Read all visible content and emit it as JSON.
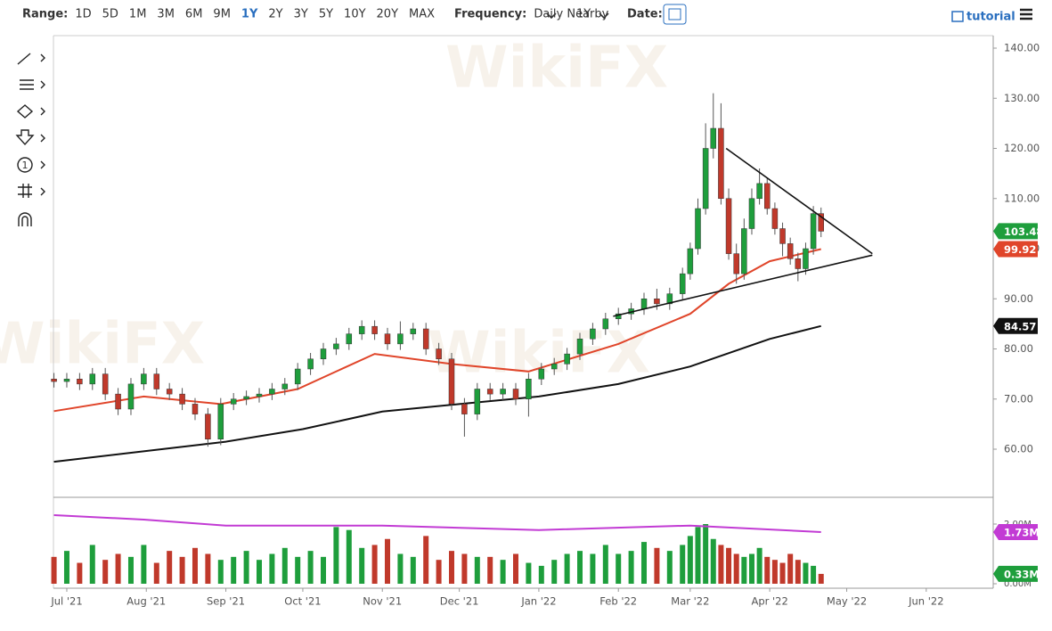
{
  "toolbar": {
    "range_label": "Range:",
    "ranges": [
      "1D",
      "5D",
      "1M",
      "3M",
      "6M",
      "9M",
      "1Y",
      "2Y",
      "3Y",
      "5Y",
      "10Y",
      "20Y",
      "MAX"
    ],
    "active_range": "1Y",
    "frequency_label": "Frequency:",
    "frequency": "Daily Nearby",
    "period": "1Y",
    "date_label": "Date:",
    "tutorial": "tutorial"
  },
  "drawing_tools": {
    "numbered_label": "1"
  },
  "watermark": "WikiFX",
  "chart_data": {
    "type": "candlestick",
    "up_color": "#1e9e3c",
    "down_color": "#c0392b",
    "x": [
      -5,
      0,
      5,
      10,
      15,
      20,
      25,
      30,
      35,
      40,
      45,
      50,
      55,
      60,
      65,
      70,
      75,
      80,
      85,
      90,
      95,
      100,
      105,
      110,
      115,
      120,
      125,
      130,
      135,
      140,
      145,
      150,
      155,
      160,
      165,
      170,
      175,
      180,
      185,
      190,
      195,
      200,
      205,
      210,
      215,
      220,
      225,
      230,
      235,
      240,
      243,
      246,
      249,
      252,
      255,
      258,
      261,
      264,
      267,
      270,
      273,
      276,
      279,
      282,
      285,
      288,
      291,
      294
    ],
    "open": [
      74,
      73.5,
      74,
      73,
      75,
      71,
      68,
      73,
      75,
      72,
      71,
      69,
      67,
      62,
      69,
      70,
      70.5,
      71,
      72,
      73,
      76,
      78,
      80,
      81,
      83,
      84.5,
      83,
      81,
      83,
      84,
      80,
      78,
      69,
      67,
      72,
      71,
      72,
      70,
      74,
      76,
      77,
      79,
      82,
      84,
      86,
      87,
      88,
      90,
      89,
      91,
      95,
      100,
      108,
      120,
      124,
      110,
      99,
      95,
      104,
      110,
      113,
      108,
      104,
      101,
      98,
      96,
      100,
      107
    ],
    "high": [
      75.2,
      75.2,
      75.2,
      76.2,
      76.2,
      72.2,
      74.2,
      76.2,
      76.2,
      73.2,
      72.2,
      70.2,
      68.2,
      70.2,
      71.2,
      71.7,
      72.2,
      73.2,
      74.2,
      77.2,
      79.2,
      81.2,
      82.2,
      84.2,
      85.7,
      85.7,
      84.2,
      85.5,
      85.2,
      85.2,
      81.2,
      79.2,
      70.2,
      73.2,
      73.2,
      73.2,
      73.2,
      75.2,
      77.2,
      78.2,
      80.2,
      83.2,
      85.2,
      87.2,
      88.2,
      89.2,
      91.2,
      92,
      92.2,
      96.2,
      101.2,
      110,
      125,
      131,
      129,
      112,
      101,
      106,
      112,
      116,
      114.2,
      109.2,
      105.2,
      102.2,
      99.2,
      101.2,
      108.5,
      108.2
    ],
    "low": [
      72.3,
      72.3,
      71.8,
      71.8,
      69.8,
      66.8,
      66.8,
      71.8,
      70.8,
      69.8,
      67.8,
      65.8,
      60.5,
      60.8,
      67.8,
      68.8,
      69.3,
      69.8,
      70.8,
      71.8,
      74.8,
      76.8,
      78.8,
      79.8,
      81.8,
      81.8,
      79.8,
      79.8,
      81.8,
      78.8,
      76.8,
      67.8,
      62.5,
      65.8,
      69.8,
      69.8,
      68.8,
      66.5,
      72.8,
      74.8,
      75.8,
      77.8,
      80.8,
      82.8,
      84.8,
      85.8,
      86.8,
      87.8,
      87.8,
      89.8,
      93.8,
      98.8,
      106.8,
      118,
      108.8,
      97.8,
      93,
      93.8,
      102.8,
      108.8,
      106.8,
      102.8,
      98.5,
      96.8,
      93.5,
      94.8,
      98.8,
      102.3
    ],
    "close": [
      73.5,
      74,
      73,
      75,
      71,
      68,
      73,
      75,
      72,
      71,
      69,
      67,
      62,
      69,
      70,
      70.5,
      71,
      72,
      73,
      76,
      78,
      80,
      81,
      83,
      84.5,
      83,
      81,
      83,
      84,
      80,
      78,
      69,
      67,
      72,
      71,
      72,
      70,
      74,
      76,
      77,
      79,
      82,
      84,
      86,
      87,
      88,
      90,
      89,
      91,
      95,
      100,
      108,
      120,
      124,
      110,
      99,
      95,
      104,
      110,
      113,
      108,
      104,
      101,
      98,
      96,
      100,
      107,
      103.48
    ],
    "volume": [
      0.9,
      1.1,
      0.7,
      1.3,
      0.8,
      1.0,
      0.9,
      1.3,
      0.7,
      1.1,
      0.9,
      1.2,
      1.0,
      0.8,
      0.9,
      1.1,
      0.8,
      1.0,
      1.2,
      0.9,
      1.1,
      0.9,
      1.9,
      1.8,
      1.2,
      1.3,
      1.5,
      1.0,
      0.9,
      1.6,
      0.8,
      1.1,
      1.0,
      0.9,
      0.9,
      0.8,
      1.0,
      0.7,
      0.6,
      0.8,
      1.0,
      1.1,
      1.0,
      1.3,
      1.0,
      1.1,
      1.4,
      1.2,
      1.1,
      1.3,
      1.6,
      1.9,
      2.0,
      1.5,
      1.3,
      1.2,
      1.0,
      0.9,
      1.0,
      1.2,
      0.9,
      0.8,
      0.7,
      1.0,
      0.8,
      0.7,
      0.6,
      0.33
    ],
    "lines": [
      {
        "color": "#e0452a",
        "x": [
          -5,
          30,
          60,
          90,
          120,
          150,
          180,
          215,
          243,
          258,
          274,
          294
        ],
        "values": [
          67.6,
          70.5,
          69,
          72,
          79,
          77,
          75.5,
          81,
          87,
          93,
          97.5,
          99.92
        ]
      },
      {
        "color": "#111111",
        "x": [
          -5,
          62,
          92,
          123,
          153,
          184,
          215,
          243,
          274,
          294
        ],
        "values": [
          57.5,
          61.5,
          64,
          67.5,
          69,
          70.5,
          73,
          76.5,
          82,
          84.57
        ]
      }
    ],
    "volume_average": {
      "color": "#c23bd4",
      "x": [
        -5,
        30,
        62,
        123,
        184,
        243,
        294
      ],
      "values": [
        2.3,
        2.15,
        1.95,
        1.95,
        1.8,
        1.95,
        1.73
      ]
    },
    "trendlines": [
      {
        "x": [
          257,
          314
        ],
        "y": [
          120,
          99
        ]
      },
      {
        "x": [
          213,
          314
        ],
        "y": [
          86.5,
          98.7
        ]
      }
    ],
    "badges": [
      {
        "value": 103.48,
        "label": "103.48",
        "color": "#1e9e3c"
      },
      {
        "value": 99.92,
        "label": "99.92",
        "color": "#e0452a"
      },
      {
        "value": 84.57,
        "label": "84.57",
        "color": "#111111"
      }
    ],
    "volume_badges": [
      {
        "value": 1.73,
        "label": "1.73M",
        "color": "#c23bd4"
      },
      {
        "value": 0.33,
        "label": "0.33M",
        "color": "#1e9e3c"
      }
    ],
    "xlim": [
      -5.2,
      361.1
    ],
    "xticks": [
      {
        "value": 0,
        "label": "Jul '21"
      },
      {
        "value": 31,
        "label": "Aug '21"
      },
      {
        "value": 62,
        "label": "Sep '21"
      },
      {
        "value": 92,
        "label": "Oct '21"
      },
      {
        "value": 123,
        "label": "Nov '21"
      },
      {
        "value": 153,
        "label": "Dec '21"
      },
      {
        "value": 184,
        "label": "Jan '22"
      },
      {
        "value": 215,
        "label": "Feb '22"
      },
      {
        "value": 243,
        "label": "Mar '22"
      },
      {
        "value": 274,
        "label": "Apr '22"
      },
      {
        "value": 304,
        "label": "May '22"
      },
      {
        "value": 335,
        "label": "Jun '22"
      }
    ],
    "ylim": [
      50.4,
      142.49
    ],
    "yticks": [
      {
        "value": 60,
        "label": "60.00"
      },
      {
        "value": 70,
        "label": "70.00"
      },
      {
        "value": 80,
        "label": "80.00"
      },
      {
        "value": 90,
        "label": "90.00"
      },
      {
        "value": 100,
        "label": "100.00"
      },
      {
        "value": 110,
        "label": "110.00"
      },
      {
        "value": 120,
        "label": "120.00"
      },
      {
        "value": 130,
        "label": "130.00"
      },
      {
        "value": 140,
        "label": "140.00"
      }
    ],
    "volume_ylim": [
      -0.15,
      2.836
    ],
    "volume_yticks": [
      {
        "value": 0,
        "label": "0.00M"
      },
      {
        "value": 2,
        "label": "2.00M"
      }
    ]
  }
}
